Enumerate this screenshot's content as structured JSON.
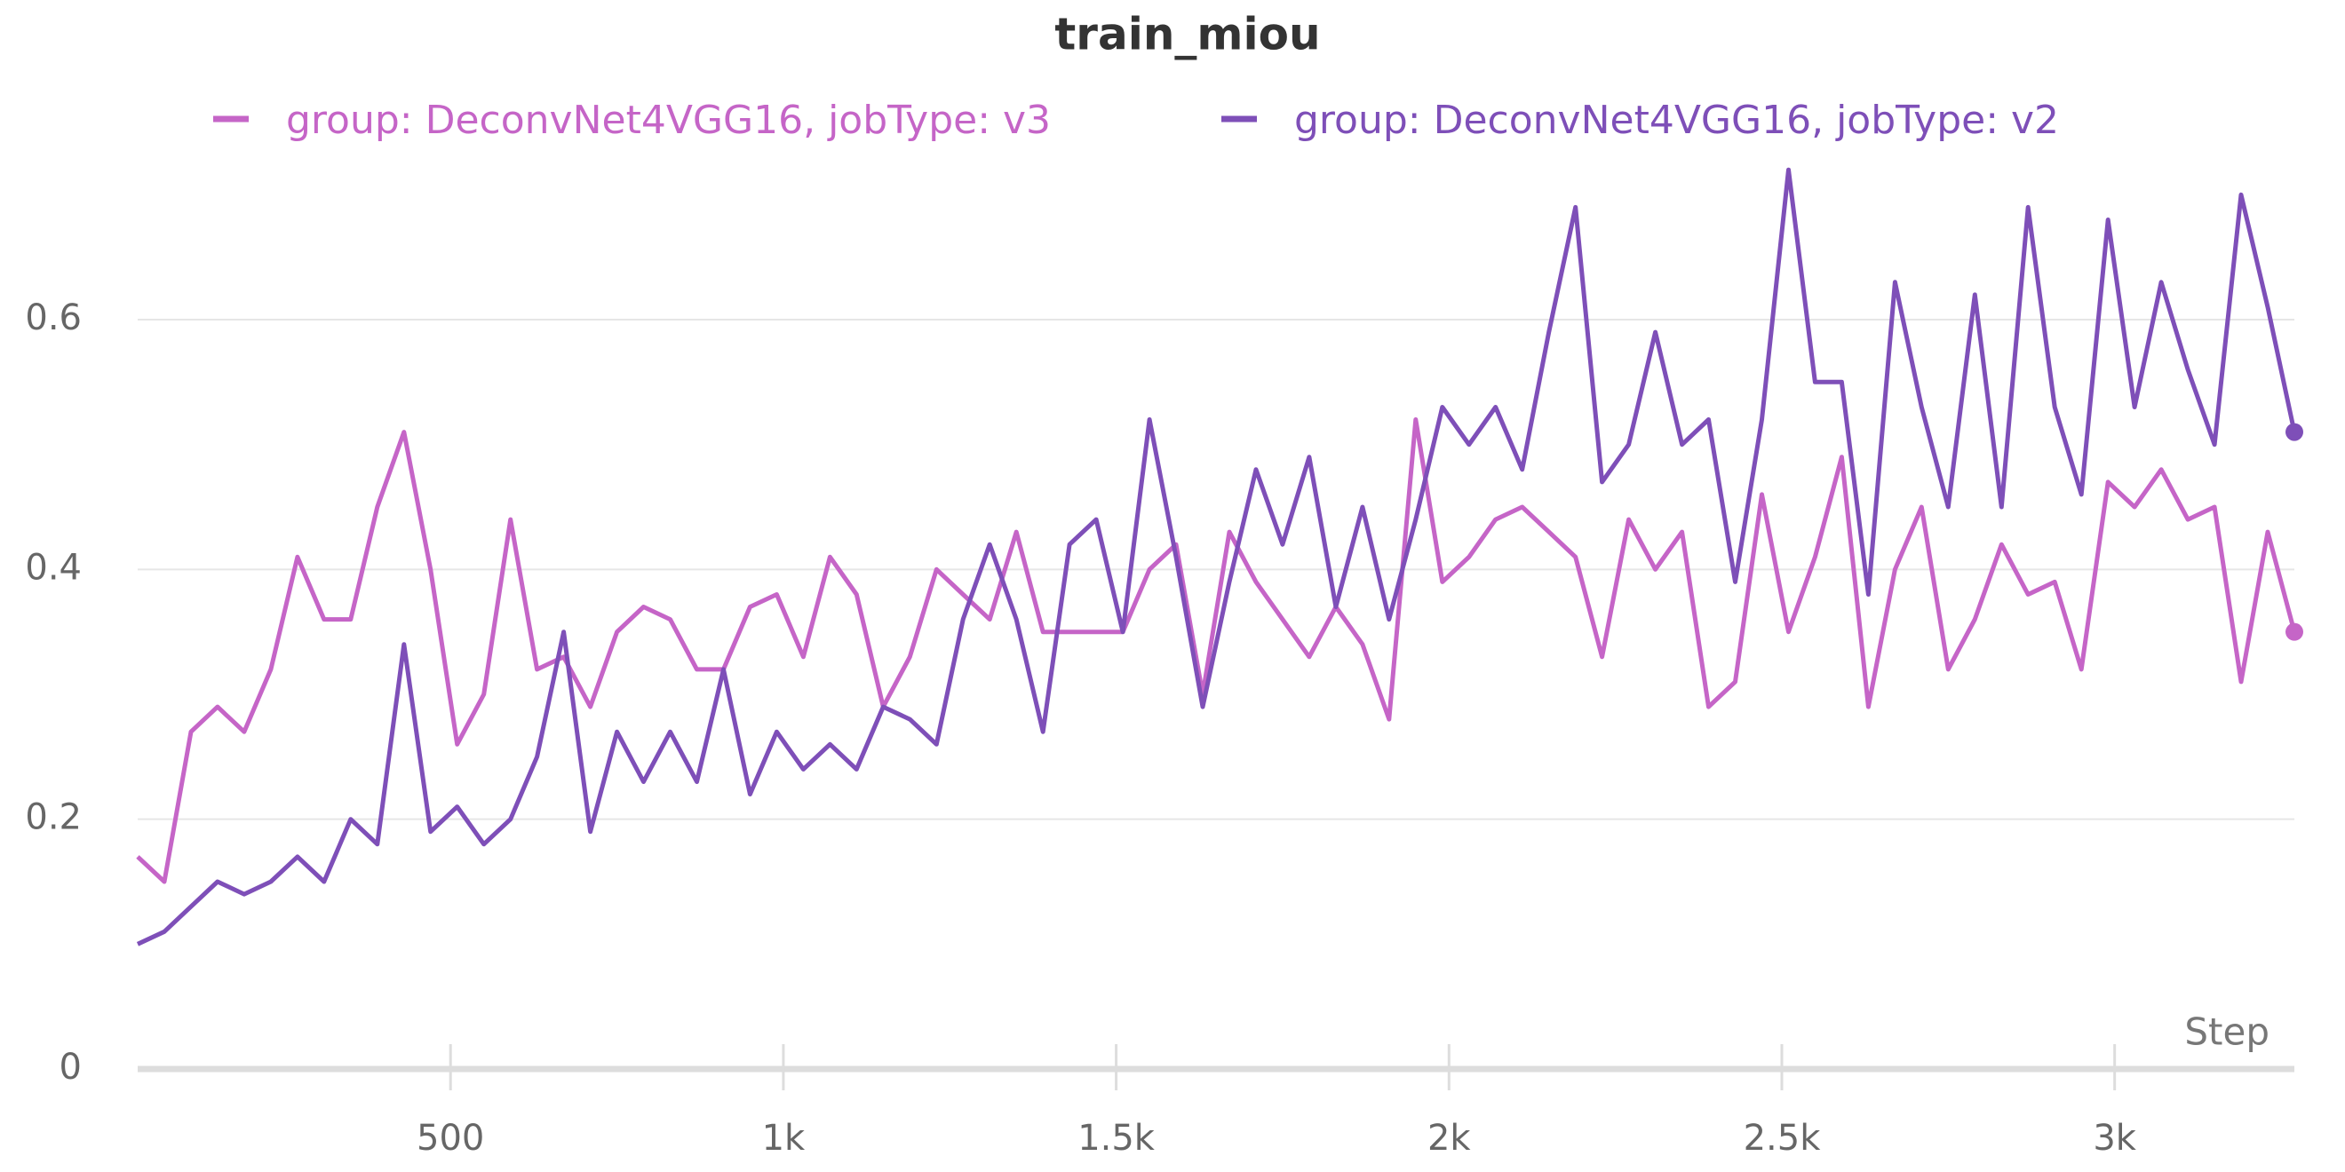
{
  "chart_data": {
    "type": "line",
    "title": "train_miou",
    "x_label": "Step",
    "x": [
      30,
      70,
      110,
      150,
      190,
      230,
      270,
      310,
      350,
      390,
      430,
      470,
      510,
      550,
      590,
      630,
      670,
      710,
      750,
      790,
      830,
      870,
      910,
      950,
      990,
      1030,
      1070,
      1110,
      1150,
      1190,
      1230,
      1270,
      1310,
      1350,
      1390,
      1430,
      1470,
      1510,
      1550,
      1590,
      1630,
      1670,
      1710,
      1750,
      1790,
      1830,
      1870,
      1910,
      1950,
      1990,
      2030,
      2070,
      2110,
      2150,
      2190,
      2230,
      2270,
      2310,
      2350,
      2390,
      2430,
      2470,
      2510,
      2550,
      2590,
      2630,
      2670,
      2710,
      2750,
      2790,
      2830,
      2870,
      2910,
      2950,
      2990,
      3030,
      3070,
      3110,
      3150,
      3190,
      3230,
      3270
    ],
    "series": [
      {
        "name": "group: DeconvNet4VGG16, jobType: v3",
        "color": "#c565c7",
        "values": [
          0.17,
          0.15,
          0.27,
          0.29,
          0.27,
          0.32,
          0.41,
          0.36,
          0.36,
          0.45,
          0.51,
          0.4,
          0.26,
          0.3,
          0.44,
          0.32,
          0.33,
          0.29,
          0.35,
          0.37,
          0.36,
          0.32,
          0.32,
          0.37,
          0.38,
          0.33,
          0.41,
          0.38,
          0.29,
          0.33,
          0.4,
          0.38,
          0.36,
          0.43,
          0.35,
          0.35,
          0.35,
          0.35,
          0.4,
          0.42,
          0.3,
          0.43,
          0.39,
          0.36,
          0.33,
          0.37,
          0.34,
          0.28,
          0.52,
          0.39,
          0.41,
          0.44,
          0.45,
          0.43,
          0.41,
          0.33,
          0.44,
          0.4,
          0.43,
          0.29,
          0.31,
          0.46,
          0.35,
          0.41,
          0.49,
          0.29,
          0.4,
          0.45,
          0.32,
          0.36,
          0.42,
          0.38,
          0.39,
          0.32,
          0.47,
          0.45,
          0.48,
          0.44,
          0.45,
          0.31,
          0.43,
          0.35
        ]
      },
      {
        "name": "group: DeconvNet4VGG16, jobType: v2",
        "color": "#7e4fb8",
        "values": [
          0.1,
          0.11,
          0.13,
          0.15,
          0.14,
          0.15,
          0.17,
          0.15,
          0.2,
          0.18,
          0.34,
          0.19,
          0.21,
          0.18,
          0.2,
          0.25,
          0.35,
          0.19,
          0.27,
          0.23,
          0.27,
          0.23,
          0.32,
          0.22,
          0.27,
          0.24,
          0.26,
          0.24,
          0.29,
          0.28,
          0.26,
          0.36,
          0.42,
          0.36,
          0.27,
          0.42,
          0.44,
          0.35,
          0.52,
          0.41,
          0.29,
          0.39,
          0.48,
          0.42,
          0.49,
          0.37,
          0.45,
          0.36,
          0.44,
          0.53,
          0.5,
          0.53,
          0.48,
          0.59,
          0.69,
          0.47,
          0.5,
          0.59,
          0.5,
          0.52,
          0.39,
          0.52,
          0.72,
          0.55,
          0.55,
          0.38,
          0.63,
          0.53,
          0.45,
          0.62,
          0.45,
          0.69,
          0.53,
          0.46,
          0.68,
          0.53,
          0.63,
          0.56,
          0.5,
          0.7,
          0.61,
          0.51
        ]
      }
    ],
    "xlim": [
      30,
      3270
    ],
    "ylim": [
      0,
      0.75
    ],
    "xticks": [
      500,
      {
        "value": 1000,
        "label": "1k"
      },
      {
        "value": 1500,
        "label": "1.5k"
      },
      {
        "value": 2000,
        "label": "2k"
      },
      {
        "value": 2500,
        "label": "2.5k"
      },
      {
        "value": 3000,
        "label": "3k"
      }
    ],
    "yticks": [
      0,
      0.2,
      0.4,
      0.6
    ],
    "grid": true
  }
}
